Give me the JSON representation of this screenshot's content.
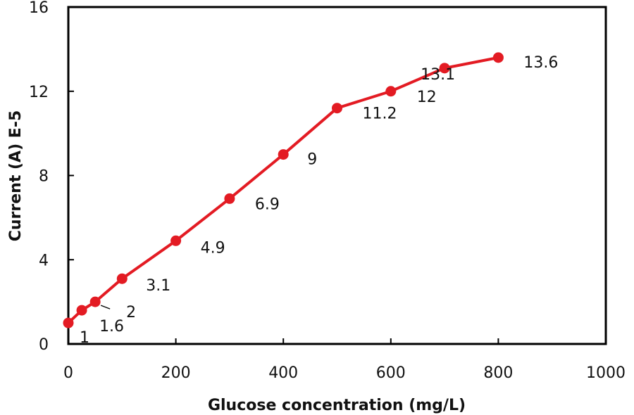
{
  "chart_data": {
    "type": "line",
    "xlabel": "Glucose concentration (mg/L)",
    "ylabel": "Current  (A)  E-5",
    "xlim": [
      0,
      1000
    ],
    "ylim": [
      0,
      16
    ],
    "x_ticks": [
      0,
      200,
      400,
      600,
      800,
      1000
    ],
    "y_ticks": [
      0,
      4,
      8,
      12,
      16
    ],
    "x_tick_labels": [
      "0",
      "200",
      "400",
      "600",
      "800",
      "1000"
    ],
    "y_tick_labels": [
      "0",
      "4",
      "8",
      "12",
      "16"
    ],
    "grid": false,
    "legend": "none",
    "series": [
      {
        "color": "#e31b23",
        "points": [
          {
            "x": 0,
            "y": 1.0,
            "label": "1"
          },
          {
            "x": 25,
            "y": 1.6,
            "label": "1.6"
          },
          {
            "x": 50,
            "y": 2.0,
            "label": "2"
          },
          {
            "x": 100,
            "y": 3.1,
            "label": "3.1"
          },
          {
            "x": 200,
            "y": 4.9,
            "label": "4.9"
          },
          {
            "x": 300,
            "y": 6.9,
            "label": "6.9"
          },
          {
            "x": 400,
            "y": 9.0,
            "label": "9"
          },
          {
            "x": 500,
            "y": 11.2,
            "label": "11.2"
          },
          {
            "x": 600,
            "y": 12.0,
            "label": "12"
          },
          {
            "x": 700,
            "y": 13.1,
            "label": "13.1"
          },
          {
            "x": 800,
            "y": 13.6,
            "label": "13.6"
          }
        ]
      }
    ]
  }
}
